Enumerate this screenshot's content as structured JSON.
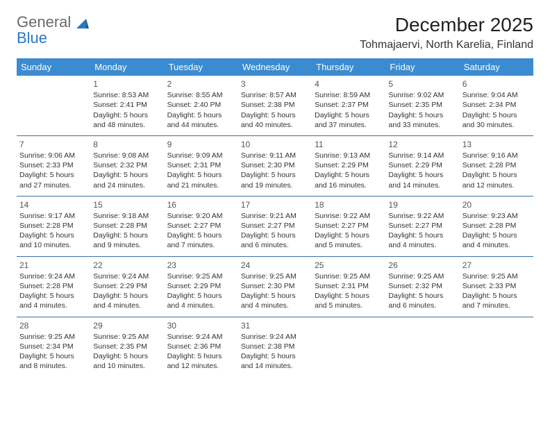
{
  "logo": {
    "line1": "General",
    "line2": "Blue"
  },
  "title": "December 2025",
  "location": "Tohmajaervi, North Karelia, Finland",
  "colors": {
    "header_bg": "#3b8bd0",
    "header_text": "#ffffff",
    "row_divider": "#3b6fa5",
    "logo_blue": "#2b77c0",
    "logo_gray": "#6a6a6a",
    "text": "#333333",
    "background": "#ffffff"
  },
  "typography": {
    "title_fontsize": 28,
    "location_fontsize": 16,
    "header_fontsize": 13,
    "cell_fontsize": 10.5,
    "daynum_fontsize": 12
  },
  "weekdays": [
    "Sunday",
    "Monday",
    "Tuesday",
    "Wednesday",
    "Thursday",
    "Friday",
    "Saturday"
  ],
  "weeks": [
    [
      null,
      {
        "d": "1",
        "sr": "8:53 AM",
        "ss": "2:41 PM",
        "dl": "5 hours and 48 minutes."
      },
      {
        "d": "2",
        "sr": "8:55 AM",
        "ss": "2:40 PM",
        "dl": "5 hours and 44 minutes."
      },
      {
        "d": "3",
        "sr": "8:57 AM",
        "ss": "2:38 PM",
        "dl": "5 hours and 40 minutes."
      },
      {
        "d": "4",
        "sr": "8:59 AM",
        "ss": "2:37 PM",
        "dl": "5 hours and 37 minutes."
      },
      {
        "d": "5",
        "sr": "9:02 AM",
        "ss": "2:35 PM",
        "dl": "5 hours and 33 minutes."
      },
      {
        "d": "6",
        "sr": "9:04 AM",
        "ss": "2:34 PM",
        "dl": "5 hours and 30 minutes."
      }
    ],
    [
      {
        "d": "7",
        "sr": "9:06 AM",
        "ss": "2:33 PM",
        "dl": "5 hours and 27 minutes."
      },
      {
        "d": "8",
        "sr": "9:08 AM",
        "ss": "2:32 PM",
        "dl": "5 hours and 24 minutes."
      },
      {
        "d": "9",
        "sr": "9:09 AM",
        "ss": "2:31 PM",
        "dl": "5 hours and 21 minutes."
      },
      {
        "d": "10",
        "sr": "9:11 AM",
        "ss": "2:30 PM",
        "dl": "5 hours and 19 minutes."
      },
      {
        "d": "11",
        "sr": "9:13 AM",
        "ss": "2:29 PM",
        "dl": "5 hours and 16 minutes."
      },
      {
        "d": "12",
        "sr": "9:14 AM",
        "ss": "2:29 PM",
        "dl": "5 hours and 14 minutes."
      },
      {
        "d": "13",
        "sr": "9:16 AM",
        "ss": "2:28 PM",
        "dl": "5 hours and 12 minutes."
      }
    ],
    [
      {
        "d": "14",
        "sr": "9:17 AM",
        "ss": "2:28 PM",
        "dl": "5 hours and 10 minutes."
      },
      {
        "d": "15",
        "sr": "9:18 AM",
        "ss": "2:28 PM",
        "dl": "5 hours and 9 minutes."
      },
      {
        "d": "16",
        "sr": "9:20 AM",
        "ss": "2:27 PM",
        "dl": "5 hours and 7 minutes."
      },
      {
        "d": "17",
        "sr": "9:21 AM",
        "ss": "2:27 PM",
        "dl": "5 hours and 6 minutes."
      },
      {
        "d": "18",
        "sr": "9:22 AM",
        "ss": "2:27 PM",
        "dl": "5 hours and 5 minutes."
      },
      {
        "d": "19",
        "sr": "9:22 AM",
        "ss": "2:27 PM",
        "dl": "5 hours and 4 minutes."
      },
      {
        "d": "20",
        "sr": "9:23 AM",
        "ss": "2:28 PM",
        "dl": "5 hours and 4 minutes."
      }
    ],
    [
      {
        "d": "21",
        "sr": "9:24 AM",
        "ss": "2:28 PM",
        "dl": "5 hours and 4 minutes."
      },
      {
        "d": "22",
        "sr": "9:24 AM",
        "ss": "2:29 PM",
        "dl": "5 hours and 4 minutes."
      },
      {
        "d": "23",
        "sr": "9:25 AM",
        "ss": "2:29 PM",
        "dl": "5 hours and 4 minutes."
      },
      {
        "d": "24",
        "sr": "9:25 AM",
        "ss": "2:30 PM",
        "dl": "5 hours and 4 minutes."
      },
      {
        "d": "25",
        "sr": "9:25 AM",
        "ss": "2:31 PM",
        "dl": "5 hours and 5 minutes."
      },
      {
        "d": "26",
        "sr": "9:25 AM",
        "ss": "2:32 PM",
        "dl": "5 hours and 6 minutes."
      },
      {
        "d": "27",
        "sr": "9:25 AM",
        "ss": "2:33 PM",
        "dl": "5 hours and 7 minutes."
      }
    ],
    [
      {
        "d": "28",
        "sr": "9:25 AM",
        "ss": "2:34 PM",
        "dl": "5 hours and 8 minutes."
      },
      {
        "d": "29",
        "sr": "9:25 AM",
        "ss": "2:35 PM",
        "dl": "5 hours and 10 minutes."
      },
      {
        "d": "30",
        "sr": "9:24 AM",
        "ss": "2:36 PM",
        "dl": "5 hours and 12 minutes."
      },
      {
        "d": "31",
        "sr": "9:24 AM",
        "ss": "2:38 PM",
        "dl": "5 hours and 14 minutes."
      },
      null,
      null,
      null
    ]
  ],
  "labels": {
    "sunrise": "Sunrise:",
    "sunset": "Sunset:",
    "daylight": "Daylight:"
  }
}
